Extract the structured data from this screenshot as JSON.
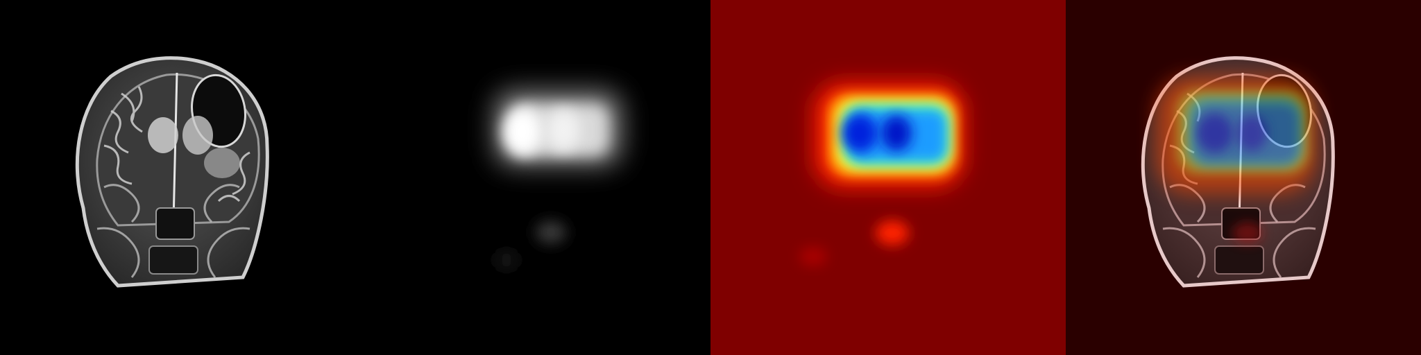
{
  "panels": [
    {
      "id": "mri-slice",
      "kind": "grayscale-mri-coronal"
    },
    {
      "id": "attention-map-gray",
      "kind": "grayscale-heatmap"
    },
    {
      "id": "attention-map-jet",
      "kind": "jet-colormap-heatmap"
    },
    {
      "id": "overlay",
      "kind": "heatmap-overlay-on-mri"
    }
  ],
  "colors": {
    "background": "#000000",
    "jet_low": "#7f0000",
    "jet_high": "#0000ff",
    "overlay_tint": "#2a0000"
  }
}
